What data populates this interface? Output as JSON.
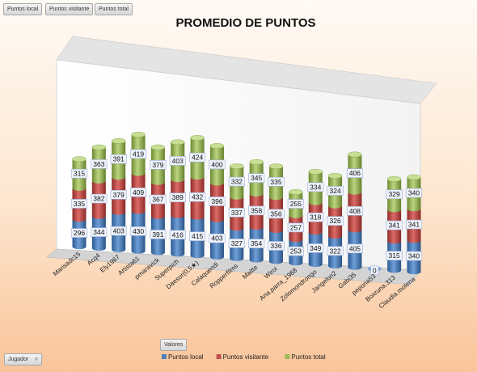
{
  "field_buttons": {
    "puntos_local": "Puntos local",
    "puntos_visitante": "Puntos visitante",
    "puntos_total": "Puntos total",
    "valores": "Valores",
    "jugador": "Jugador"
  },
  "chart_data": {
    "type": "bar",
    "stacked": true,
    "style": "3d-cylinder",
    "title": "PROMEDIO DE PUNTOS",
    "legend_position": "bottom",
    "categories": [
      "Marisadc15",
      "Acq4",
      "Ely1967",
      "Artista61",
      "pmaravick",
      "Superpich",
      "Daesor(0,5★)",
      "Calaquendi",
      "Ropperfilms",
      "Maitte",
      "Wiroi",
      "Ana.parra_1968",
      "Zolomondrongo",
      "Jangelon2",
      "Gabi35",
      "pepona53",
      "Boxruna.313",
      "Claudia.molena"
    ],
    "series": [
      {
        "name": "Puntos local",
        "color": "#4f81bd",
        "values": [
          296,
          344,
          403,
          430,
          391,
          416,
          415,
          403,
          327,
          354,
          336,
          253,
          349,
          322,
          405,
          0,
          315,
          340
        ]
      },
      {
        "name": "Puntos visitante",
        "color": "#c0504d",
        "values": [
          335,
          382,
          379,
          409,
          367,
          389,
          432,
          396,
          337,
          358,
          356,
          257,
          318,
          326,
          408,
          null,
          341,
          341
        ]
      },
      {
        "name": "Puntos total",
        "color": "#9bbb59",
        "values": [
          315,
          363,
          391,
          419,
          379,
          403,
          424,
          400,
          332,
          345,
          335,
          255,
          334,
          324,
          406,
          null,
          329,
          340
        ]
      }
    ]
  }
}
